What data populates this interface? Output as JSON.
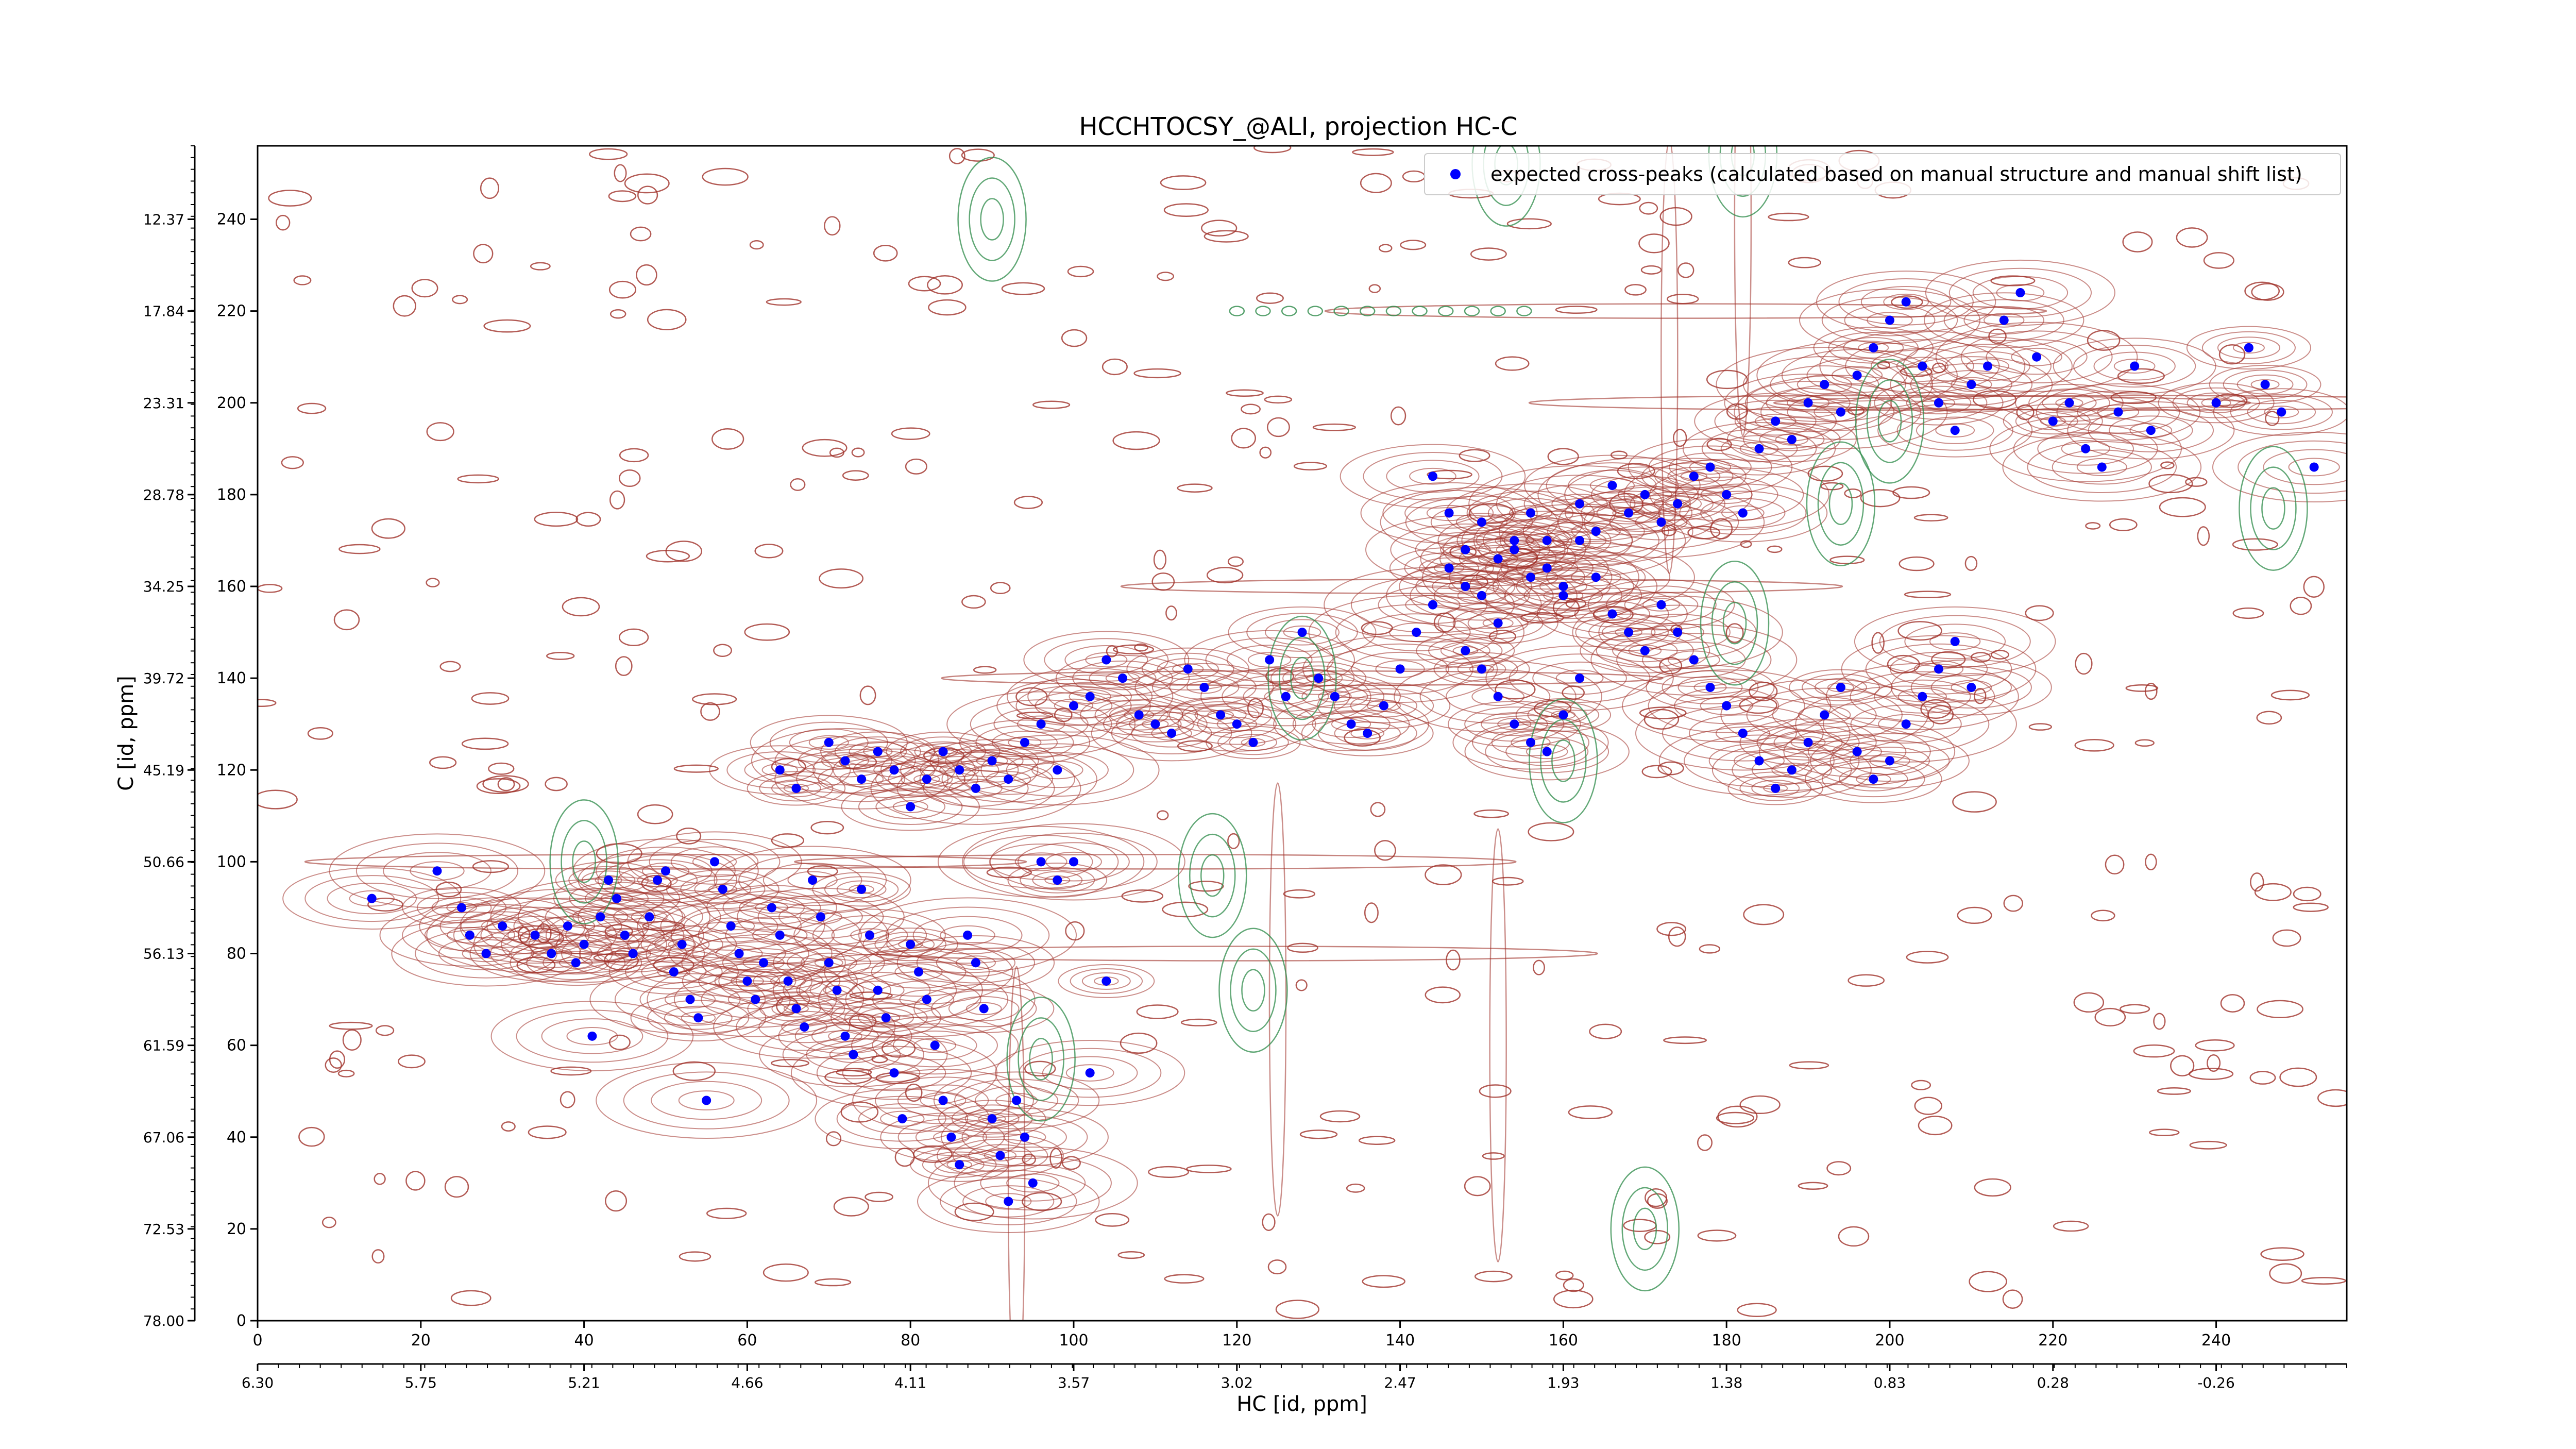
{
  "chart_data": {
    "type": "scatter",
    "title": "HCCHTOCSY_@ALI, projection HC-C",
    "xlabel": "HC [id, ppm]",
    "ylabel": "C [id, ppm]",
    "xlim": [
      0,
      256
    ],
    "ylim": [
      0,
      256
    ],
    "x_ticks": [
      "0",
      "20",
      "40",
      "60",
      "80",
      "100",
      "120",
      "140",
      "160",
      "180",
      "200",
      "220",
      "240"
    ],
    "y_ticks": [
      "0",
      "20",
      "40",
      "60",
      "80",
      "100",
      "120",
      "140",
      "160",
      "180",
      "200",
      "220",
      "240"
    ],
    "x_ppm_ticks": [
      "6.30",
      "5.75",
      "5.21",
      "4.66",
      "4.11",
      "3.57",
      "3.02",
      "2.47",
      "1.93",
      "1.38",
      "0.83",
      "0.28",
      "-0.26"
    ],
    "y_ppm_ticks": [
      "78.00",
      "72.53",
      "67.06",
      "61.59",
      "56.13",
      "50.66",
      "45.19",
      "39.72",
      "34.25",
      "28.78",
      "23.31",
      "17.84",
      "12.37"
    ],
    "legend": {
      "label": "expected cross-peaks (calculated based on manual structure and manual shift list)",
      "position": "upper right"
    },
    "colors": {
      "marker": "#0000ff",
      "positive_contour": "#a0322a",
      "negative_contour": "#2e8b4a"
    },
    "series": [
      {
        "name": "expected cross-peaks (calculated based on manual structure and manual shift list)",
        "points": [
          [
            14,
            92
          ],
          [
            22,
            98
          ],
          [
            25,
            90
          ],
          [
            26,
            84
          ],
          [
            28,
            80
          ],
          [
            30,
            86
          ],
          [
            34,
            84
          ],
          [
            36,
            80
          ],
          [
            38,
            86
          ],
          [
            39,
            78
          ],
          [
            40,
            82
          ],
          [
            41,
            62
          ],
          [
            42,
            88
          ],
          [
            43,
            96
          ],
          [
            44,
            92
          ],
          [
            45,
            84
          ],
          [
            46,
            80
          ],
          [
            48,
            88
          ],
          [
            49,
            96
          ],
          [
            50,
            98
          ],
          [
            51,
            76
          ],
          [
            52,
            82
          ],
          [
            53,
            70
          ],
          [
            54,
            66
          ],
          [
            55,
            48
          ],
          [
            56,
            100
          ],
          [
            57,
            94
          ],
          [
            58,
            86
          ],
          [
            59,
            80
          ],
          [
            60,
            74
          ],
          [
            61,
            70
          ],
          [
            62,
            78
          ],
          [
            63,
            90
          ],
          [
            64,
            84
          ],
          [
            65,
            74
          ],
          [
            66,
            68
          ],
          [
            67,
            64
          ],
          [
            68,
            96
          ],
          [
            69,
            88
          ],
          [
            70,
            78
          ],
          [
            71,
            72
          ],
          [
            72,
            62
          ],
          [
            73,
            58
          ],
          [
            74,
            94
          ],
          [
            75,
            84
          ],
          [
            76,
            72
          ],
          [
            77,
            66
          ],
          [
            78,
            54
          ],
          [
            79,
            44
          ],
          [
            80,
            82
          ],
          [
            81,
            76
          ],
          [
            82,
            70
          ],
          [
            83,
            60
          ],
          [
            84,
            48
          ],
          [
            85,
            40
          ],
          [
            86,
            34
          ],
          [
            87,
            84
          ],
          [
            88,
            78
          ],
          [
            89,
            68
          ],
          [
            90,
            44
          ],
          [
            91,
            36
          ],
          [
            92,
            26
          ],
          [
            93,
            48
          ],
          [
            94,
            40
          ],
          [
            95,
            30
          ],
          [
            96,
            100
          ],
          [
            98,
            96
          ],
          [
            100,
            100
          ],
          [
            102,
            54
          ],
          [
            104,
            74
          ],
          [
            64,
            120
          ],
          [
            66,
            116
          ],
          [
            70,
            126
          ],
          [
            72,
            122
          ],
          [
            74,
            118
          ],
          [
            76,
            124
          ],
          [
            78,
            120
          ],
          [
            80,
            112
          ],
          [
            82,
            118
          ],
          [
            84,
            124
          ],
          [
            86,
            120
          ],
          [
            88,
            116
          ],
          [
            90,
            122
          ],
          [
            92,
            118
          ],
          [
            94,
            126
          ],
          [
            96,
            130
          ],
          [
            98,
            120
          ],
          [
            100,
            134
          ],
          [
            102,
            136
          ],
          [
            104,
            144
          ],
          [
            106,
            140
          ],
          [
            108,
            132
          ],
          [
            110,
            130
          ],
          [
            112,
            128
          ],
          [
            114,
            142
          ],
          [
            116,
            138
          ],
          [
            118,
            132
          ],
          [
            120,
            130
          ],
          [
            122,
            126
          ],
          [
            124,
            144
          ],
          [
            126,
            136
          ],
          [
            128,
            150
          ],
          [
            130,
            140
          ],
          [
            132,
            136
          ],
          [
            134,
            130
          ],
          [
            136,
            128
          ],
          [
            138,
            134
          ],
          [
            140,
            142
          ],
          [
            142,
            150
          ],
          [
            144,
            156
          ],
          [
            146,
            164
          ],
          [
            148,
            160
          ],
          [
            150,
            158
          ],
          [
            152,
            152
          ],
          [
            154,
            168
          ],
          [
            156,
            162
          ],
          [
            158,
            170
          ],
          [
            160,
            160
          ],
          [
            162,
            178
          ],
          [
            164,
            172
          ],
          [
            166,
            182
          ],
          [
            168,
            176
          ],
          [
            170,
            180
          ],
          [
            172,
            174
          ],
          [
            174,
            178
          ],
          [
            176,
            184
          ],
          [
            178,
            186
          ],
          [
            180,
            180
          ],
          [
            182,
            176
          ],
          [
            184,
            190
          ],
          [
            186,
            196
          ],
          [
            188,
            192
          ],
          [
            190,
            200
          ],
          [
            192,
            204
          ],
          [
            194,
            198
          ],
          [
            196,
            206
          ],
          [
            198,
            212
          ],
          [
            200,
            218
          ],
          [
            202,
            222
          ],
          [
            204,
            208
          ],
          [
            206,
            200
          ],
          [
            208,
            194
          ],
          [
            210,
            204
          ],
          [
            212,
            208
          ],
          [
            214,
            218
          ],
          [
            216,
            224
          ],
          [
            218,
            210
          ],
          [
            220,
            196
          ],
          [
            222,
            200
          ],
          [
            224,
            190
          ],
          [
            226,
            186
          ],
          [
            228,
            198
          ],
          [
            230,
            208
          ],
          [
            232,
            194
          ],
          [
            240,
            200
          ],
          [
            244,
            212
          ],
          [
            246,
            204
          ],
          [
            248,
            198
          ],
          [
            252,
            186
          ],
          [
            144,
            184
          ],
          [
            146,
            176
          ],
          [
            148,
            168
          ],
          [
            150,
            174
          ],
          [
            152,
            166
          ],
          [
            154,
            170
          ],
          [
            156,
            176
          ],
          [
            158,
            164
          ],
          [
            160,
            158
          ],
          [
            162,
            170
          ],
          [
            164,
            162
          ],
          [
            166,
            154
          ],
          [
            168,
            150
          ],
          [
            170,
            146
          ],
          [
            172,
            156
          ],
          [
            174,
            150
          ],
          [
            176,
            144
          ],
          [
            178,
            138
          ],
          [
            180,
            134
          ],
          [
            182,
            128
          ],
          [
            184,
            122
          ],
          [
            186,
            116
          ],
          [
            188,
            120
          ],
          [
            190,
            126
          ],
          [
            192,
            132
          ],
          [
            194,
            138
          ],
          [
            196,
            124
          ],
          [
            198,
            118
          ],
          [
            200,
            122
          ],
          [
            202,
            130
          ],
          [
            204,
            136
          ],
          [
            206,
            142
          ],
          [
            208,
            148
          ],
          [
            210,
            138
          ],
          [
            148,
            146
          ],
          [
            150,
            142
          ],
          [
            152,
            136
          ],
          [
            154,
            130
          ],
          [
            156,
            126
          ],
          [
            158,
            124
          ],
          [
            160,
            132
          ],
          [
            162,
            140
          ]
        ]
      }
    ]
  }
}
